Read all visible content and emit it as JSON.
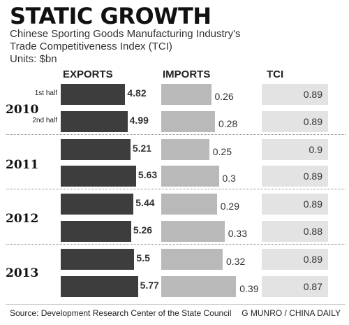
{
  "title": "STATIC GROWTH",
  "subtitle_line1": "Chinese Sporting Goods Manufacturing Industry's",
  "subtitle_line2": "Trade Competitiveness Index (TCI)",
  "units": "Units: $bn",
  "source": "Source: Development Research Center of the State Council",
  "credit": "G MUNRO / CHINA DAILY",
  "chart_data": {
    "type": "bar",
    "title": "STATIC GROWTH",
    "columns": [
      "EXPORTS",
      "IMPORTS",
      "TCI"
    ],
    "years": [
      "2010",
      "2011",
      "2012",
      "2013"
    ],
    "half_labels": [
      "1st half",
      "2nd half"
    ],
    "categories": [
      "2010 1st half",
      "2010 2nd half",
      "2011 H1",
      "2011 H2",
      "2012 H1",
      "2012 H2",
      "2013 H1",
      "2013 H2"
    ],
    "series": [
      {
        "name": "EXPORTS",
        "values": [
          4.82,
          4.99,
          5.21,
          5.63,
          5.44,
          5.26,
          5.5,
          5.77
        ],
        "color": "#3d3d3d"
      },
      {
        "name": "IMPORTS",
        "values": [
          0.26,
          0.28,
          0.25,
          0.3,
          0.29,
          0.33,
          0.32,
          0.39
        ],
        "color": "#b9b9b9"
      },
      {
        "name": "TCI",
        "values": [
          0.89,
          0.89,
          0.9,
          0.89,
          0.89,
          0.88,
          0.89,
          0.87
        ],
        "color": "#e3e3e3"
      }
    ],
    "value_labels": {
      "EXPORTS": [
        "4.82",
        "4.99",
        "5.21",
        "5.63",
        "5.44",
        "5.26",
        "5.5",
        "5.77"
      ],
      "IMPORTS": [
        "0.26",
        "0.28",
        "0.25",
        "0.3",
        "0.29",
        "0.33",
        "0.32",
        "0.39"
      ],
      "TCI": [
        "0.89",
        "0.89",
        "0.9",
        "0.89",
        "0.89",
        "0.88",
        "0.89",
        "0.87"
      ]
    }
  }
}
